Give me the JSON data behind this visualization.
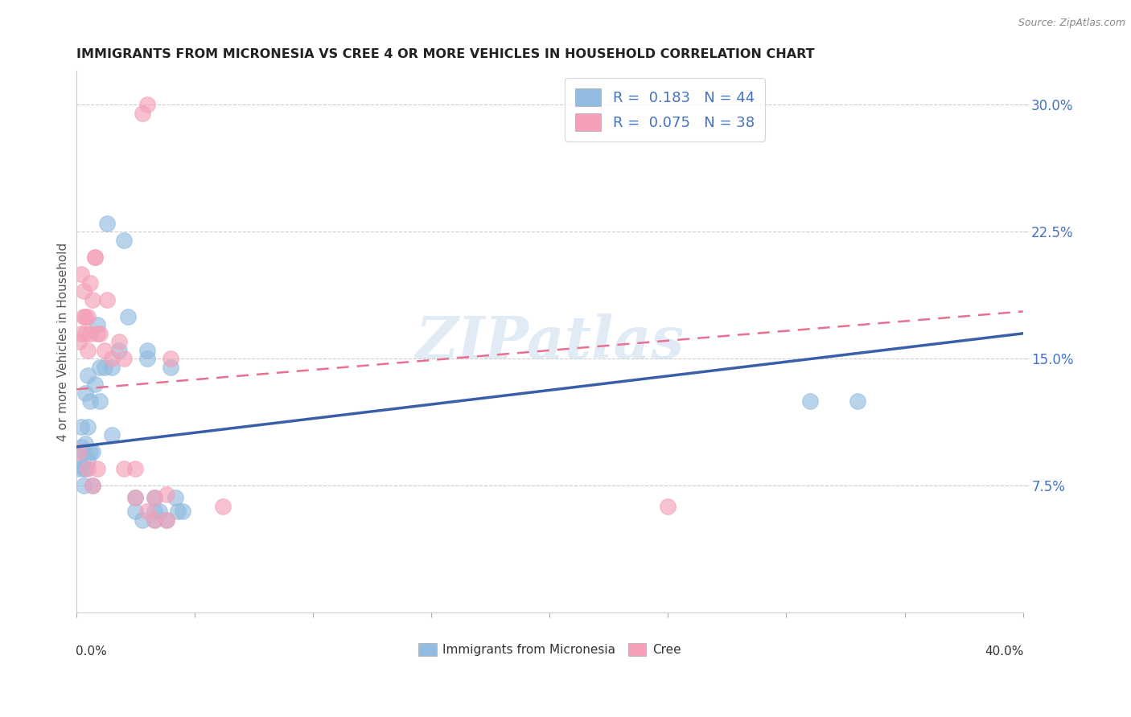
{
  "title": "IMMIGRANTS FROM MICRONESIA VS CREE 4 OR MORE VEHICLES IN HOUSEHOLD CORRELATION CHART",
  "source": "Source: ZipAtlas.com",
  "ylabel": "4 or more Vehicles in Household",
  "ytick_vals": [
    0.075,
    0.15,
    0.225,
    0.3
  ],
  "ytick_labels": [
    "7.5%",
    "15.0%",
    "22.5%",
    "30.0%"
  ],
  "ymin": 0.0,
  "ymax": 0.32,
  "xmin": 0.0,
  "xmax": 0.4,
  "watermark": "ZIPatlas",
  "micronesia_color": "#92bce0",
  "cree_color": "#f4a0b8",
  "micronesia_line_color": "#3a5fa8",
  "cree_line_color": "#e87090",
  "mic_line_start_y": 0.098,
  "mic_line_end_y": 0.165,
  "cree_line_start_y": 0.132,
  "cree_line_end_y": 0.178,
  "mic_x": [
    0.001,
    0.001,
    0.002,
    0.002,
    0.003,
    0.003,
    0.003,
    0.004,
    0.004,
    0.004,
    0.005,
    0.005,
    0.005,
    0.006,
    0.006,
    0.007,
    0.007,
    0.008,
    0.009,
    0.01,
    0.01,
    0.012,
    0.013,
    0.015,
    0.015,
    0.018,
    0.02,
    0.022,
    0.025,
    0.025,
    0.028,
    0.03,
    0.03,
    0.033,
    0.033,
    0.033,
    0.035,
    0.038,
    0.04,
    0.042,
    0.043,
    0.045,
    0.31,
    0.33
  ],
  "mic_y": [
    0.085,
    0.09,
    0.098,
    0.11,
    0.095,
    0.085,
    0.075,
    0.13,
    0.1,
    0.085,
    0.14,
    0.11,
    0.09,
    0.125,
    0.095,
    0.095,
    0.075,
    0.135,
    0.17,
    0.145,
    0.125,
    0.145,
    0.23,
    0.145,
    0.105,
    0.155,
    0.22,
    0.175,
    0.068,
    0.06,
    0.055,
    0.155,
    0.15,
    0.068,
    0.06,
    0.055,
    0.06,
    0.055,
    0.145,
    0.068,
    0.06,
    0.06,
    0.125,
    0.125
  ],
  "cree_x": [
    0.001,
    0.001,
    0.002,
    0.002,
    0.003,
    0.003,
    0.004,
    0.004,
    0.005,
    0.005,
    0.005,
    0.006,
    0.006,
    0.007,
    0.007,
    0.008,
    0.008,
    0.009,
    0.009,
    0.01,
    0.012,
    0.013,
    0.015,
    0.018,
    0.02,
    0.025,
    0.025,
    0.03,
    0.033,
    0.033,
    0.038,
    0.038,
    0.04,
    0.062,
    0.25,
    0.03,
    0.028,
    0.02
  ],
  "cree_y": [
    0.095,
    0.16,
    0.165,
    0.2,
    0.175,
    0.19,
    0.175,
    0.165,
    0.175,
    0.155,
    0.085,
    0.195,
    0.165,
    0.185,
    0.075,
    0.21,
    0.21,
    0.165,
    0.085,
    0.165,
    0.155,
    0.185,
    0.15,
    0.16,
    0.085,
    0.085,
    0.068,
    0.06,
    0.068,
    0.055,
    0.07,
    0.055,
    0.15,
    0.063,
    0.063,
    0.3,
    0.295,
    0.15
  ]
}
